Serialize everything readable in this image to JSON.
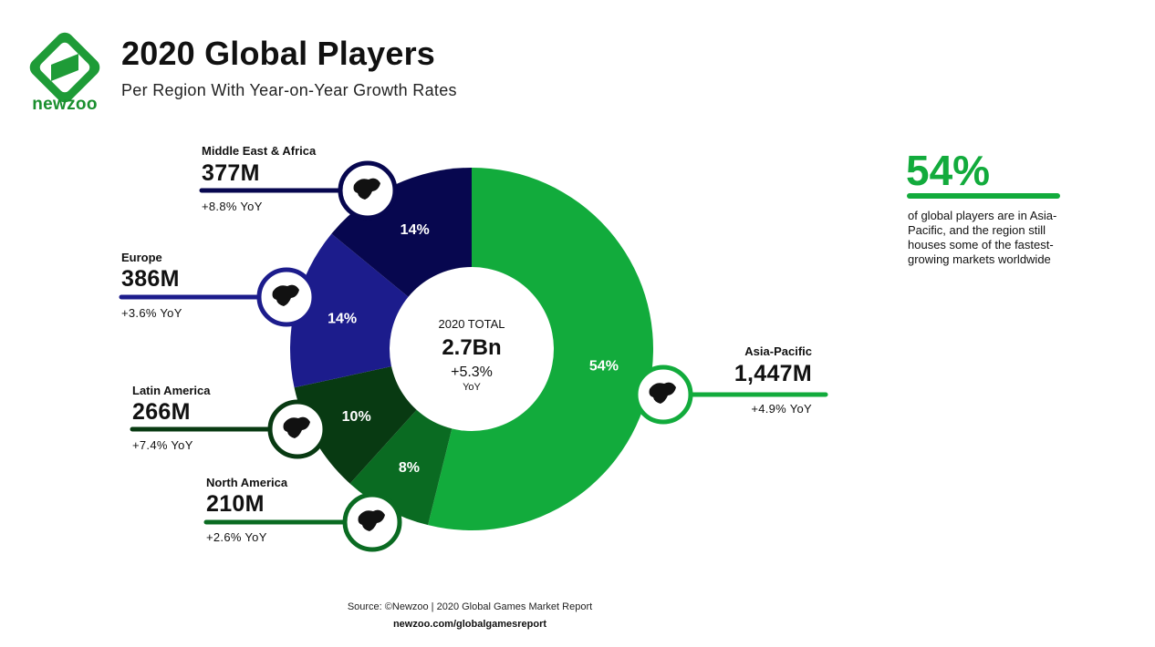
{
  "header": {
    "brand": "newzoo",
    "title": "2020 Global Players",
    "subtitle": "Per Region With Year-on-Year Growth Rates"
  },
  "chart_data": {
    "type": "pie",
    "style": "donut",
    "title": "2020 Global Players",
    "subtitle": "Per Region With Year-on-Year Growth Rates",
    "center": {
      "label": "2020 TOTAL",
      "value": "2.7Bn",
      "growth": "+5.3%",
      "growth_unit": "YoY"
    },
    "slices": [
      {
        "region": "Asia-Pacific",
        "value_text": "1,447M",
        "players_m": 1447,
        "share": 54,
        "share_label": "54%",
        "growth": "+4.9% YoY",
        "color": "#12ab3c"
      },
      {
        "region": "North America",
        "value_text": "210M",
        "players_m": 210,
        "share": 8,
        "share_label": "8%",
        "growth": "+2.6% YoY",
        "color": "#0a6b22"
      },
      {
        "region": "Latin America",
        "value_text": "266M",
        "players_m": 266,
        "share": 10,
        "share_label": "10%",
        "growth": "+7.4% YoY",
        "color": "#083a12"
      },
      {
        "region": "Europe",
        "value_text": "386M",
        "players_m": 386,
        "share": 14,
        "share_label": "14%",
        "growth": "+3.6% YoY",
        "color": "#1c1c8c"
      },
      {
        "region": "Middle East & Africa",
        "value_text": "377M",
        "players_m": 377,
        "share": 14,
        "share_label": "14%",
        "growth": "+8.8% YoY",
        "color": "#07074f"
      }
    ]
  },
  "callout": {
    "value": "54%",
    "text": "of global players are in Asia-Pacific, and the region still houses some of the fastest-growing markets worldwide",
    "color": "#12ab3c"
  },
  "footer": {
    "source": "Source: ©Newzoo | 2020 Global Games Market Report",
    "url": "newzoo.com/globalgamesreport"
  }
}
